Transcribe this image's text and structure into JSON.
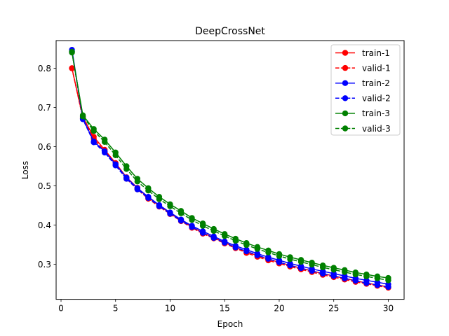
{
  "chart_data": {
    "type": "line",
    "title": "DeepCrossNet",
    "xlabel": "Epoch",
    "ylabel": "Loss",
    "xlim": [
      -0.45,
      31.45
    ],
    "ylim": [
      0.2105,
      0.8705
    ],
    "xticks": [
      0,
      5,
      10,
      15,
      20,
      25,
      30
    ],
    "xtick_labels": [
      "0",
      "5",
      "10",
      "15",
      "20",
      "25",
      "30"
    ],
    "yticks": [
      0.3,
      0.4,
      0.5,
      0.6,
      0.7,
      0.8
    ],
    "ytick_labels": [
      "0.3",
      "0.4",
      "0.5",
      "0.6",
      "0.7",
      "0.8"
    ],
    "grid": false,
    "legend_position": "top-right",
    "x": [
      1,
      2,
      3,
      4,
      5,
      6,
      7,
      8,
      9,
      10,
      11,
      12,
      13,
      14,
      15,
      16,
      17,
      18,
      19,
      20,
      21,
      22,
      23,
      24,
      25,
      26,
      27,
      28,
      29,
      30
    ],
    "series": [
      {
        "name": "train-1",
        "color": "#ff0000",
        "dashed": false,
        "values": [
          0.8,
          0.675,
          0.625,
          0.592,
          0.558,
          0.522,
          0.495,
          0.47,
          0.45,
          0.43,
          0.412,
          0.395,
          0.38,
          0.368,
          0.355,
          0.343,
          0.332,
          0.322,
          0.313,
          0.305,
          0.297,
          0.29,
          0.283,
          0.276,
          0.27,
          0.264,
          0.258,
          0.252,
          0.247,
          0.242
        ]
      },
      {
        "name": "valid-1",
        "color": "#ff0000",
        "dashed": true,
        "values": [
          0.8,
          0.672,
          0.62,
          0.588,
          0.553,
          0.518,
          0.491,
          0.467,
          0.447,
          0.428,
          0.41,
          0.393,
          0.378,
          0.366,
          0.353,
          0.341,
          0.329,
          0.319,
          0.31,
          0.302,
          0.294,
          0.287,
          0.28,
          0.273,
          0.267,
          0.261,
          0.255,
          0.25,
          0.245,
          0.24
        ]
      },
      {
        "name": "train-2",
        "color": "#0000ff",
        "dashed": false,
        "values": [
          0.847,
          0.672,
          0.613,
          0.588,
          0.555,
          0.521,
          0.494,
          0.472,
          0.451,
          0.432,
          0.414,
          0.398,
          0.384,
          0.371,
          0.358,
          0.347,
          0.337,
          0.327,
          0.318,
          0.31,
          0.302,
          0.295,
          0.288,
          0.282,
          0.276,
          0.27,
          0.264,
          0.259,
          0.254,
          0.249
        ]
      },
      {
        "name": "valid-2",
        "color": "#0000ff",
        "dashed": true,
        "values": [
          0.843,
          0.67,
          0.611,
          0.585,
          0.552,
          0.518,
          0.491,
          0.469,
          0.448,
          0.429,
          0.411,
          0.395,
          0.38,
          0.367,
          0.355,
          0.343,
          0.333,
          0.323,
          0.314,
          0.305,
          0.297,
          0.29,
          0.283,
          0.276,
          0.27,
          0.264,
          0.258,
          0.252,
          0.247,
          0.242
        ]
      },
      {
        "name": "train-3",
        "color": "#008000",
        "dashed": false,
        "values": [
          0.84,
          0.68,
          0.645,
          0.618,
          0.585,
          0.55,
          0.518,
          0.494,
          0.472,
          0.453,
          0.436,
          0.418,
          0.404,
          0.39,
          0.377,
          0.365,
          0.354,
          0.344,
          0.335,
          0.326,
          0.318,
          0.311,
          0.304,
          0.297,
          0.291,
          0.285,
          0.279,
          0.274,
          0.269,
          0.265
        ]
      },
      {
        "name": "valid-3",
        "color": "#008000",
        "dashed": true,
        "values": [
          0.842,
          0.677,
          0.64,
          0.612,
          0.578,
          0.543,
          0.511,
          0.488,
          0.466,
          0.448,
          0.43,
          0.413,
          0.398,
          0.385,
          0.372,
          0.36,
          0.349,
          0.339,
          0.33,
          0.321,
          0.313,
          0.306,
          0.299,
          0.292,
          0.286,
          0.28,
          0.274,
          0.269,
          0.264,
          0.259
        ]
      }
    ]
  }
}
